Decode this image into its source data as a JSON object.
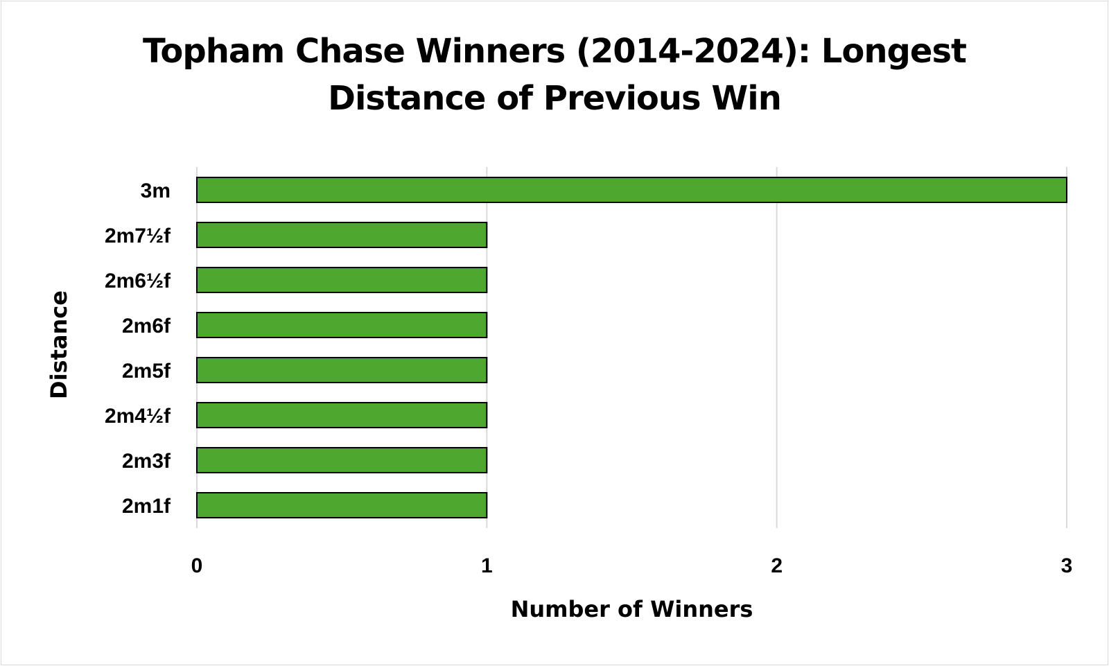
{
  "chart_data": {
    "type": "bar",
    "orientation": "horizontal",
    "title_lines": [
      "Topham Chase Winners (2014-2024): Longest",
      "Distance of Previous Win"
    ],
    "xlabel": "Number of Winners",
    "ylabel": "Distance",
    "categories": [
      "3m",
      "2m7½f",
      "2m6½f",
      "2m6f",
      "2m5f",
      "2m4½f",
      "2m3f",
      "2m1f"
    ],
    "values": [
      3,
      1,
      1,
      1,
      1,
      1,
      1,
      1
    ],
    "xlim": [
      0,
      3
    ],
    "xticks": [
      "0",
      "1",
      "2",
      "3"
    ],
    "grid": "vertical",
    "legend": "none",
    "colors": {
      "bar_fill": "#4ea72e",
      "bar_stroke": "#000000",
      "gridline": "#d9d9d9"
    }
  }
}
